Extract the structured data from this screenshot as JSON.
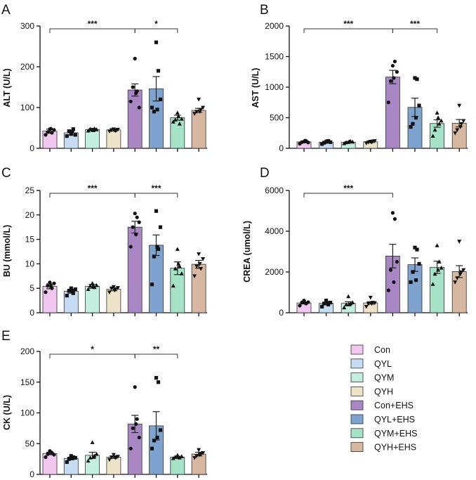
{
  "groups": [
    "Con",
    "QYL",
    "QYM",
    "QYH",
    "Con+EHS",
    "QYL+EHS",
    "QYM+EHS",
    "QYH+EHS"
  ],
  "colors": {
    "Con": "#f1c6ef",
    "QYL": "#c6dcf3",
    "QYM": "#c3efe1",
    "QYH": "#ede3c9",
    "Con+EHS": "#a987c5",
    "QYL+EHS": "#7fa3cf",
    "QYM+EHS": "#a5e3c9",
    "QYH+EHS": "#d8b7a0",
    "edge": "#333333"
  },
  "markers": [
    "circle",
    "square",
    "triangle",
    "invtriangle",
    "circle",
    "square",
    "triangle",
    "invtriangle"
  ],
  "legend": {
    "placement": "bottom-right",
    "items": [
      "Con",
      "QYL",
      "QYM",
      "QYH",
      "Con+EHS",
      "QYL+EHS",
      "QYM+EHS",
      "QYH+EHS"
    ]
  },
  "chart_data": [
    {
      "panel": "A",
      "type": "bar",
      "ylabel": "ALT (U/L)",
      "ylim": [
        0,
        300
      ],
      "yticks": [
        "0",
        "100",
        "200",
        "300"
      ],
      "ytick_values": [
        0,
        100,
        200,
        300
      ],
      "categories": [
        "Con",
        "QYL",
        "QYM",
        "QYH",
        "Con+EHS",
        "QYL+EHS",
        "QYM+EHS",
        "QYH+EHS"
      ],
      "values": [
        42,
        38,
        46,
        45,
        143,
        146,
        75,
        93
      ],
      "errors": [
        5,
        5,
        3,
        3,
        15,
        30,
        6,
        5
      ],
      "points": [
        [
          33,
          40,
          47,
          38,
          45,
          48
        ],
        [
          30,
          42,
          35,
          47,
          33,
          41
        ],
        [
          43,
          47,
          45,
          48,
          46,
          44
        ],
        [
          42,
          45,
          47,
          43,
          46,
          44
        ],
        [
          115,
          150,
          220,
          140,
          100,
          135
        ],
        [
          100,
          90,
          260,
          190,
          120,
          95
        ],
        [
          65,
          70,
          87,
          60,
          72,
          78
        ],
        [
          85,
          90,
          120,
          95,
          100,
          90
        ]
      ],
      "significance": [
        {
          "from": 0,
          "to": 4,
          "label": "***"
        },
        {
          "from": 4,
          "to": 6,
          "label": "*"
        }
      ]
    },
    {
      "panel": "B",
      "type": "bar",
      "ylabel": "AST (U/L)",
      "ylim": [
        0,
        2000
      ],
      "yticks": [
        "0",
        "500",
        "1000",
        "1500",
        "2000"
      ],
      "ytick_values": [
        0,
        500,
        1000,
        1500,
        2000
      ],
      "categories": [
        "Con",
        "QYL",
        "QYM",
        "QYH",
        "Con+EHS",
        "QYL+EHS",
        "QYM+EHS",
        "QYH+EHS"
      ],
      "values": [
        105,
        100,
        100,
        105,
        1165,
        670,
        405,
        410
      ],
      "errors": [
        15,
        15,
        10,
        12,
        110,
        150,
        60,
        60
      ],
      "points": [
        [
          75,
          100,
          110,
          120,
          95,
          125
        ],
        [
          70,
          90,
          105,
          120,
          100,
          115
        ],
        [
          80,
          95,
          100,
          115,
          105,
          110
        ],
        [
          85,
          100,
          110,
          115,
          120,
          100
        ],
        [
          750,
          1100,
          1350,
          1420,
          1250,
          1150
        ],
        [
          350,
          400,
          1150,
          1130,
          700,
          500
        ],
        [
          200,
          300,
          580,
          400,
          450,
          500
        ],
        [
          250,
          300,
          700,
          400,
          450,
          350
        ]
      ],
      "significance": [
        {
          "from": 0,
          "to": 4,
          "label": "***"
        },
        {
          "from": 4,
          "to": 6,
          "label": "***"
        }
      ]
    },
    {
      "panel": "C",
      "type": "bar",
      "ylabel": "BU (mmol/L)",
      "ylim": [
        0,
        25
      ],
      "yticks": [
        "0",
        "5",
        "10",
        "15",
        "20",
        "25"
      ],
      "ytick_values": [
        0,
        5,
        10,
        15,
        20,
        25
      ],
      "categories": [
        "Con",
        "QYL",
        "QYM",
        "QYH",
        "Con+EHS",
        "QYL+EHS",
        "QYM+EHS",
        "QYH+EHS"
      ],
      "values": [
        5.4,
        4.4,
        5.4,
        4.8,
        17.5,
        13.8,
        9.1,
        9.9
      ],
      "errors": [
        0.5,
        0.4,
        0.4,
        0.3,
        1.2,
        2.1,
        1.3,
        0.8
      ],
      "points": [
        [
          4.2,
          5.5,
          6.2,
          5.0,
          6.0,
          5.5
        ],
        [
          3.5,
          4.5,
          5.0,
          4.0,
          4.8,
          4.5
        ],
        [
          4.8,
          5.5,
          6.0,
          5.2,
          5.6,
          5.4
        ],
        [
          4.2,
          5.0,
          5.3,
          4.8,
          5.1,
          4.6
        ],
        [
          13.5,
          17.5,
          20.3,
          19.5,
          18.5,
          16.0
        ],
        [
          5.8,
          11.5,
          20.8,
          13.0,
          17.5,
          13.5
        ],
        [
          5.5,
          9.0,
          13.0,
          9.5,
          8.0,
          10.0
        ],
        [
          7.5,
          9.5,
          12.0,
          9.0,
          11.0,
          10.0
        ]
      ],
      "significance": [
        {
          "from": 0,
          "to": 4,
          "label": "***"
        },
        {
          "from": 4,
          "to": 6,
          "label": "***"
        }
      ]
    },
    {
      "panel": "D",
      "type": "bar",
      "ylabel": "CREA (umol/L)",
      "ylim": [
        0,
        6000
      ],
      "yticks": [
        "0",
        "2000",
        "4000",
        "6000"
      ],
      "ytick_values": [
        0,
        2000,
        4000,
        6000
      ],
      "categories": [
        "Con",
        "QYL",
        "QYM",
        "QYH",
        "Con+EHS",
        "QYL+EHS",
        "QYM+EHS",
        "QYH+EHS"
      ],
      "values": [
        480,
        460,
        460,
        480,
        2780,
        2360,
        2230,
        2020
      ],
      "errors": [
        50,
        60,
        80,
        60,
        580,
        330,
        300,
        290
      ],
      "points": [
        [
          350,
          500,
          600,
          450,
          520,
          480
        ],
        [
          300,
          450,
          600,
          400,
          500,
          480
        ],
        [
          250,
          400,
          800,
          450,
          500,
          400
        ],
        [
          300,
          450,
          750,
          500,
          480,
          450
        ],
        [
          1100,
          2100,
          4900,
          4600,
          2500,
          1500
        ],
        [
          1500,
          2000,
          3200,
          3100,
          2400,
          1600
        ],
        [
          1400,
          1900,
          3300,
          2500,
          2200,
          2100
        ],
        [
          1500,
          1700,
          3500,
          2000,
          2100,
          1900
        ]
      ],
      "significance": [
        {
          "from": 0,
          "to": 4,
          "label": "***"
        }
      ]
    },
    {
      "panel": "E",
      "type": "bar",
      "ylabel": "CK (U/L)",
      "ylim": [
        0,
        200
      ],
      "yticks": [
        "0",
        "50",
        "100",
        "150",
        "200"
      ],
      "ytick_values": [
        0,
        50,
        100,
        150,
        200
      ],
      "categories": [
        "Con",
        "QYL",
        "QYM",
        "QYH",
        "Con+EHS",
        "QYL+EHS",
        "QYM+EHS",
        "QYH+EHS"
      ],
      "values": [
        34,
        26,
        31,
        28,
        82,
        79,
        28,
        33
      ],
      "errors": [
        2,
        2,
        5,
        2,
        14,
        23,
        1.5,
        3
      ],
      "points": [
        [
          28,
          33,
          38,
          35,
          32,
          36
        ],
        [
          20,
          25,
          30,
          28,
          27,
          26
        ],
        [
          22,
          27,
          52,
          30,
          33,
          28
        ],
        [
          24,
          28,
          32,
          27,
          29,
          28
        ],
        [
          42,
          75,
          142,
          90,
          60,
          82
        ],
        [
          42,
          55,
          157,
          150,
          72,
          60
        ],
        [
          26,
          28,
          31,
          27,
          29,
          28
        ],
        [
          27,
          30,
          40,
          33,
          35,
          32
        ]
      ],
      "significance": [
        {
          "from": 0,
          "to": 4,
          "label": "*"
        },
        {
          "from": 4,
          "to": 6,
          "label": "**"
        }
      ]
    }
  ]
}
